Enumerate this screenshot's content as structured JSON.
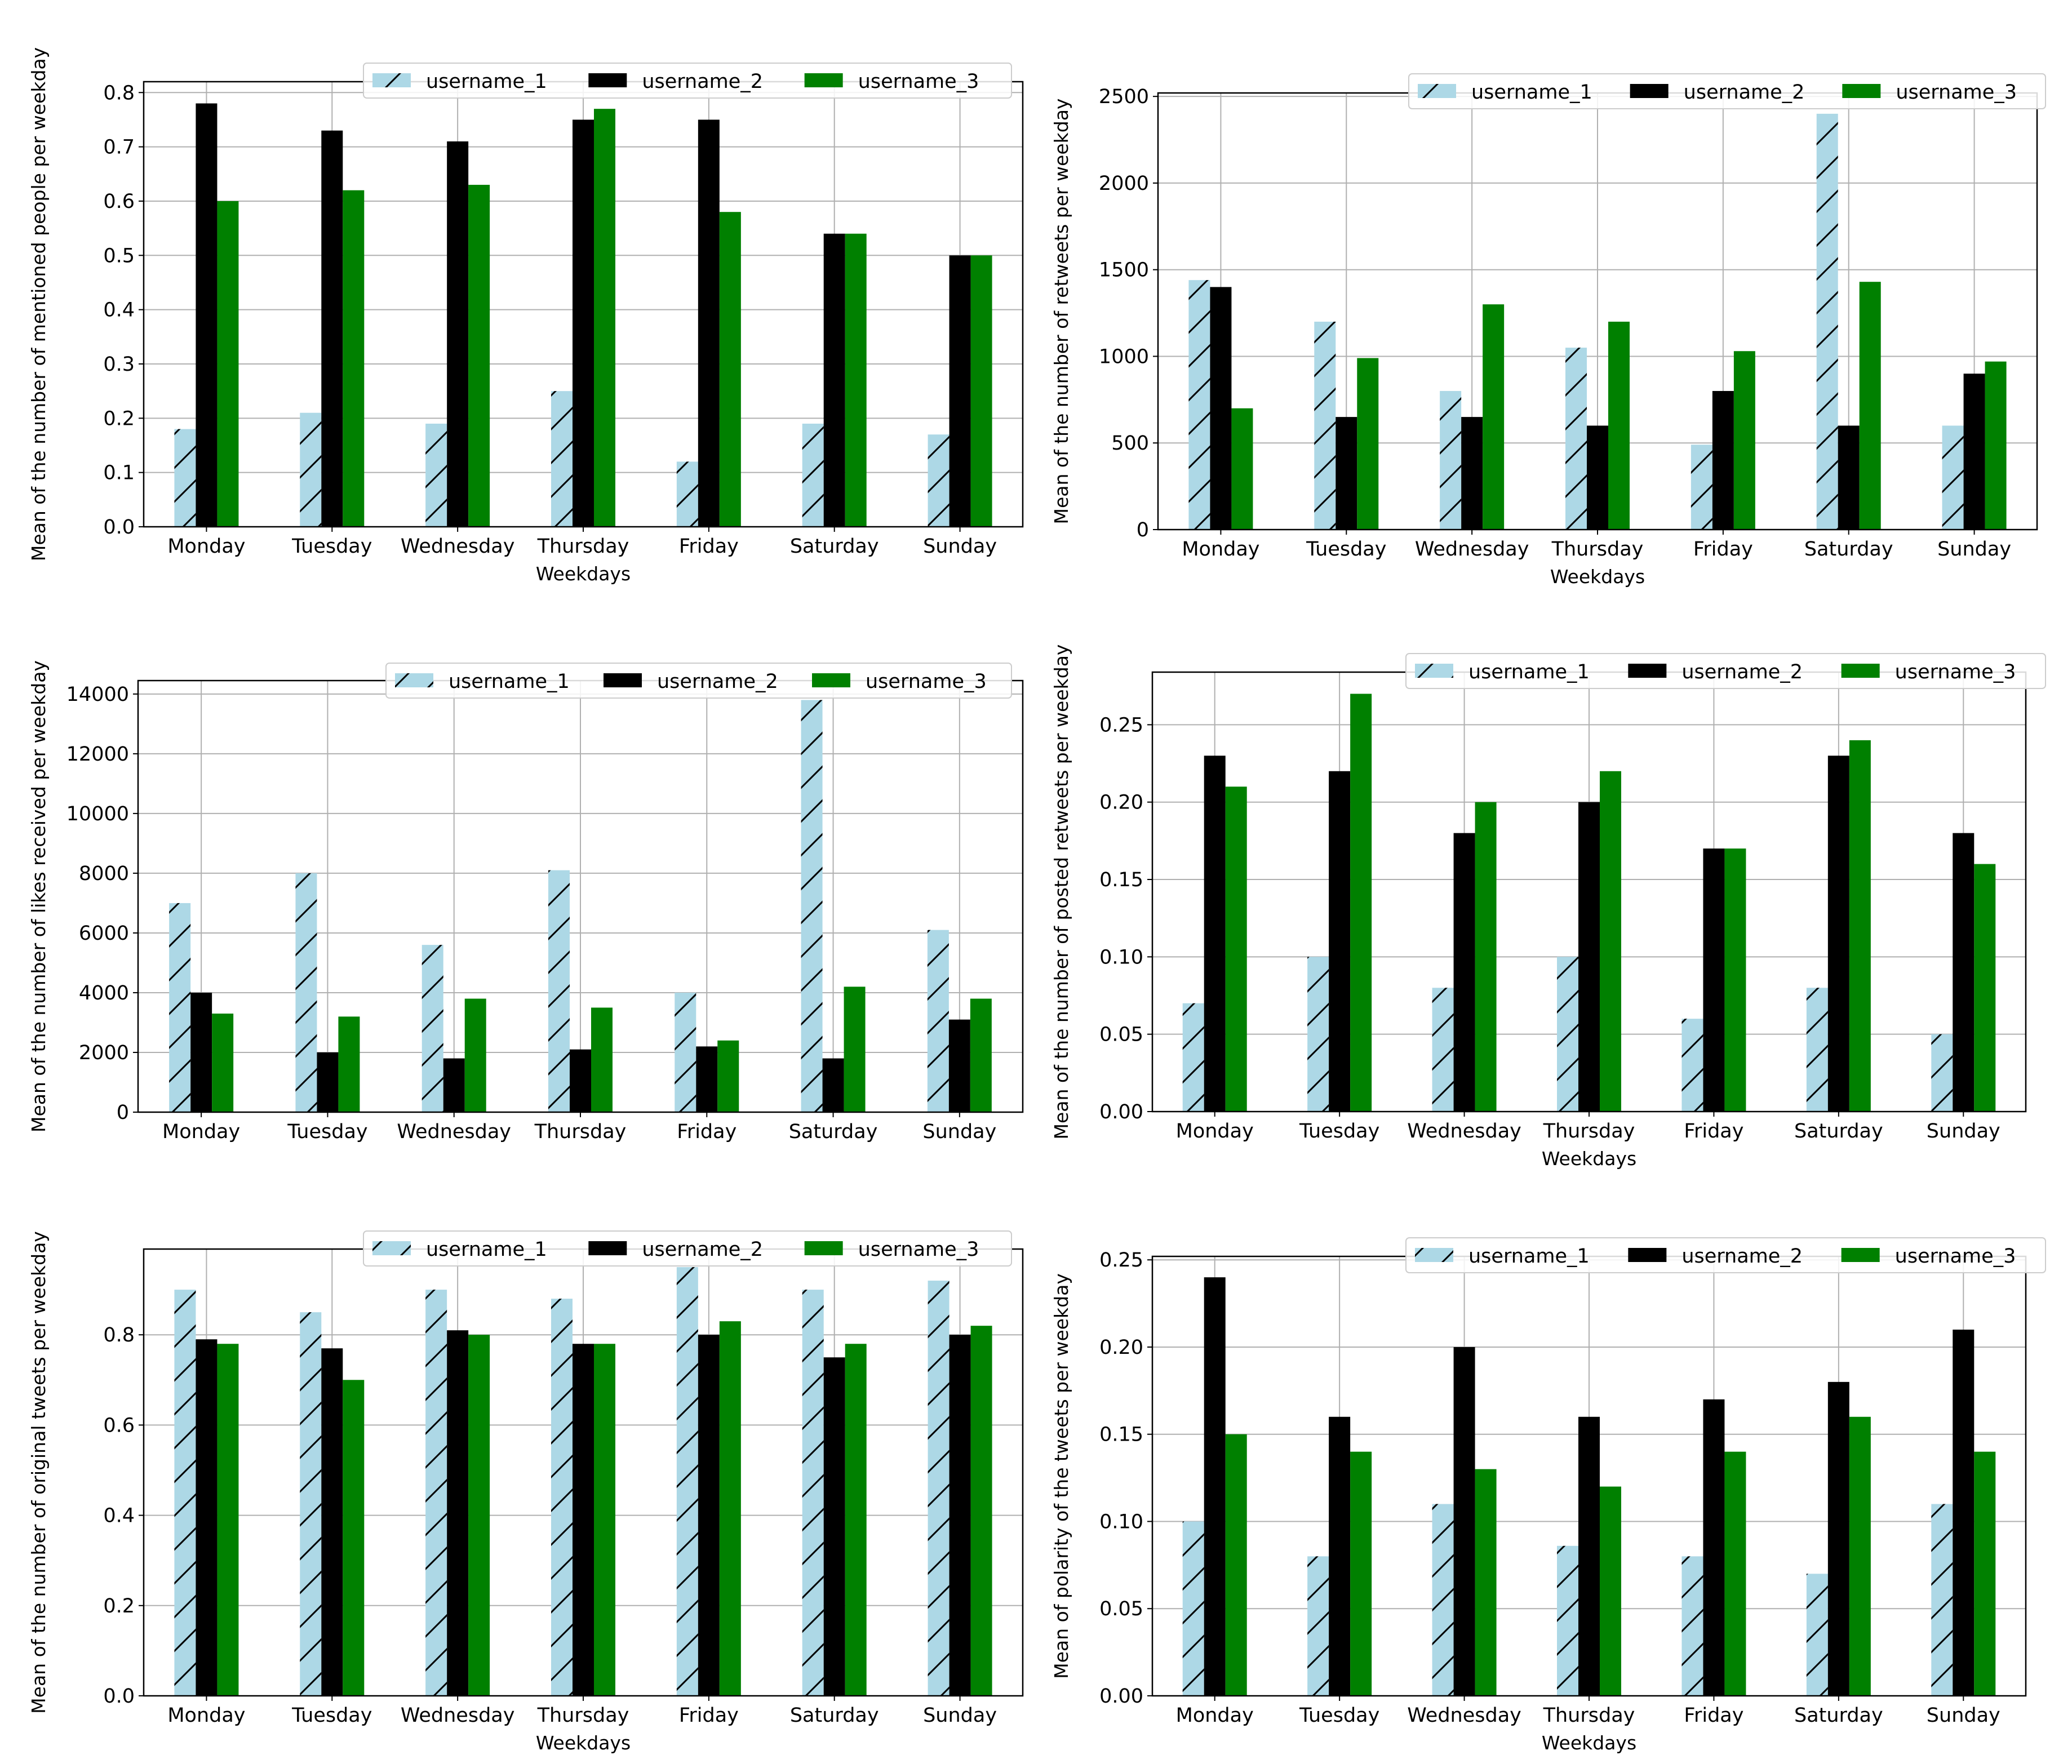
{
  "colors": {
    "username_1": "#add8e6",
    "username_2": "#000000",
    "username_3": "#008000",
    "grid": "#b0b0b0",
    "axis": "#000000"
  },
  "chart_data": [
    {
      "type": "bar",
      "title": "",
      "xlabel": "Weekdays",
      "ylabel": "Mean of the number of mentioned people per weekday",
      "categories": [
        "Monday",
        "Tuesday",
        "Wednesday",
        "Thursday",
        "Friday",
        "Saturday",
        "Sunday"
      ],
      "series": [
        {
          "name": "username_1",
          "values": [
            0.18,
            0.21,
            0.19,
            0.25,
            0.12,
            0.19,
            0.17
          ]
        },
        {
          "name": "username_2",
          "values": [
            0.78,
            0.73,
            0.71,
            0.75,
            0.75,
            0.54,
            0.5
          ]
        },
        {
          "name": "username_3",
          "values": [
            0.6,
            0.62,
            0.63,
            0.77,
            0.58,
            0.54,
            0.5
          ]
        }
      ],
      "ylim": [
        0,
        0.82
      ],
      "yticks": [
        0.0,
        0.1,
        0.2,
        0.3,
        0.4,
        0.5,
        0.6,
        0.7,
        0.8
      ],
      "ytick_labels": [
        "0.0",
        "0.1",
        "0.2",
        "0.3",
        "0.4",
        "0.5",
        "0.6",
        "0.7",
        "0.8"
      ],
      "grid": true,
      "legend": "top-right"
    },
    {
      "type": "bar",
      "title": "",
      "xlabel": "Weekdays",
      "ylabel": "Mean of the number of retweets per weekday",
      "categories": [
        "Monday",
        "Tuesday",
        "Wednesday",
        "Thursday",
        "Friday",
        "Saturday",
        "Sunday"
      ],
      "series": [
        {
          "name": "username_1",
          "values": [
            1440,
            1200,
            800,
            1050,
            490,
            2400,
            600
          ]
        },
        {
          "name": "username_2",
          "values": [
            1400,
            650,
            650,
            600,
            800,
            600,
            900
          ]
        },
        {
          "name": "username_3",
          "values": [
            700,
            990,
            1300,
            1200,
            1030,
            1430,
            970
          ]
        }
      ],
      "ylim": [
        0,
        2520
      ],
      "yticks": [
        0,
        500,
        1000,
        1500,
        2000,
        2500
      ],
      "ytick_labels": [
        "0",
        "500",
        "1000",
        "1500",
        "2000",
        "2500"
      ],
      "grid": true,
      "legend": "top-right"
    },
    {
      "type": "bar",
      "title": "",
      "xlabel": "",
      "ylabel": "Mean of the number of likes received per weekday",
      "categories": [
        "Monday",
        "Tuesday",
        "Wednesday",
        "Thursday",
        "Friday",
        "Saturday",
        "Sunday"
      ],
      "series": [
        {
          "name": "username_1",
          "values": [
            7000,
            8000,
            5600,
            8100,
            4000,
            13800,
            6100
          ]
        },
        {
          "name": "username_2",
          "values": [
            4000,
            2000,
            1800,
            2100,
            2200,
            1800,
            3100
          ]
        },
        {
          "name": "username_3",
          "values": [
            3300,
            3200,
            3800,
            3500,
            2400,
            4200,
            3800
          ]
        }
      ],
      "ylim": [
        0,
        14450
      ],
      "yticks": [
        0,
        2000,
        4000,
        6000,
        8000,
        10000,
        12000,
        14000
      ],
      "ytick_labels": [
        "0",
        "2000",
        "4000",
        "6000",
        "8000",
        "10000",
        "12000",
        "14000"
      ],
      "grid": true,
      "legend": "top-right"
    },
    {
      "type": "bar",
      "title": "",
      "xlabel": "Weekdays",
      "ylabel": "Mean of the number of posted retweets per weekday",
      "categories": [
        "Monday",
        "Tuesday",
        "Wednesday",
        "Thursday",
        "Friday",
        "Saturday",
        "Sunday"
      ],
      "series": [
        {
          "name": "username_1",
          "values": [
            0.07,
            0.1,
            0.08,
            0.1,
            0.06,
            0.08,
            0.05
          ]
        },
        {
          "name": "username_2",
          "values": [
            0.23,
            0.22,
            0.18,
            0.2,
            0.17,
            0.23,
            0.18
          ]
        },
        {
          "name": "username_3",
          "values": [
            0.21,
            0.27,
            0.2,
            0.22,
            0.17,
            0.24,
            0.16
          ]
        }
      ],
      "ylim": [
        0,
        0.284
      ],
      "yticks": [
        0.0,
        0.05,
        0.1,
        0.15,
        0.2,
        0.25
      ],
      "ytick_labels": [
        "0.00",
        "0.05",
        "0.10",
        "0.15",
        "0.20",
        "0.25"
      ],
      "grid": true,
      "legend": "top-right"
    },
    {
      "type": "bar",
      "title": "",
      "xlabel": "Weekdays",
      "ylabel": "Mean of the number of original tweets per weekday",
      "categories": [
        "Monday",
        "Tuesday",
        "Wednesday",
        "Thursday",
        "Friday",
        "Saturday",
        "Sunday"
      ],
      "series": [
        {
          "name": "username_1",
          "values": [
            0.9,
            0.85,
            0.9,
            0.88,
            0.95,
            0.9,
            0.92
          ]
        },
        {
          "name": "username_2",
          "values": [
            0.79,
            0.77,
            0.81,
            0.78,
            0.8,
            0.75,
            0.8
          ]
        },
        {
          "name": "username_3",
          "values": [
            0.78,
            0.7,
            0.8,
            0.78,
            0.83,
            0.78,
            0.82
          ]
        }
      ],
      "ylim": [
        0,
        0.99
      ],
      "yticks": [
        0.0,
        0.2,
        0.4,
        0.6,
        0.8
      ],
      "ytick_labels": [
        "0.0",
        "0.2",
        "0.4",
        "0.6",
        "0.8"
      ],
      "grid": true,
      "legend": "top-right"
    },
    {
      "type": "bar",
      "title": "",
      "xlabel": "Weekdays",
      "ylabel": "Mean of polarity of the tweets per weekday",
      "categories": [
        "Monday",
        "Tuesday",
        "Wednesday",
        "Thursday",
        "Friday",
        "Saturday",
        "Sunday"
      ],
      "series": [
        {
          "name": "username_1",
          "values": [
            0.1,
            0.08,
            0.11,
            0.086,
            0.08,
            0.07,
            0.11
          ]
        },
        {
          "name": "username_2",
          "values": [
            0.24,
            0.16,
            0.2,
            0.16,
            0.17,
            0.18,
            0.21
          ]
        },
        {
          "name": "username_3",
          "values": [
            0.15,
            0.14,
            0.13,
            0.12,
            0.14,
            0.16,
            0.14
          ]
        }
      ],
      "ylim": [
        0,
        0.252
      ],
      "yticks": [
        0.0,
        0.05,
        0.1,
        0.15,
        0.2,
        0.25
      ],
      "ytick_labels": [
        "0.00",
        "0.05",
        "0.10",
        "0.15",
        "0.20",
        "0.25"
      ],
      "grid": true,
      "legend": "top-right"
    }
  ]
}
